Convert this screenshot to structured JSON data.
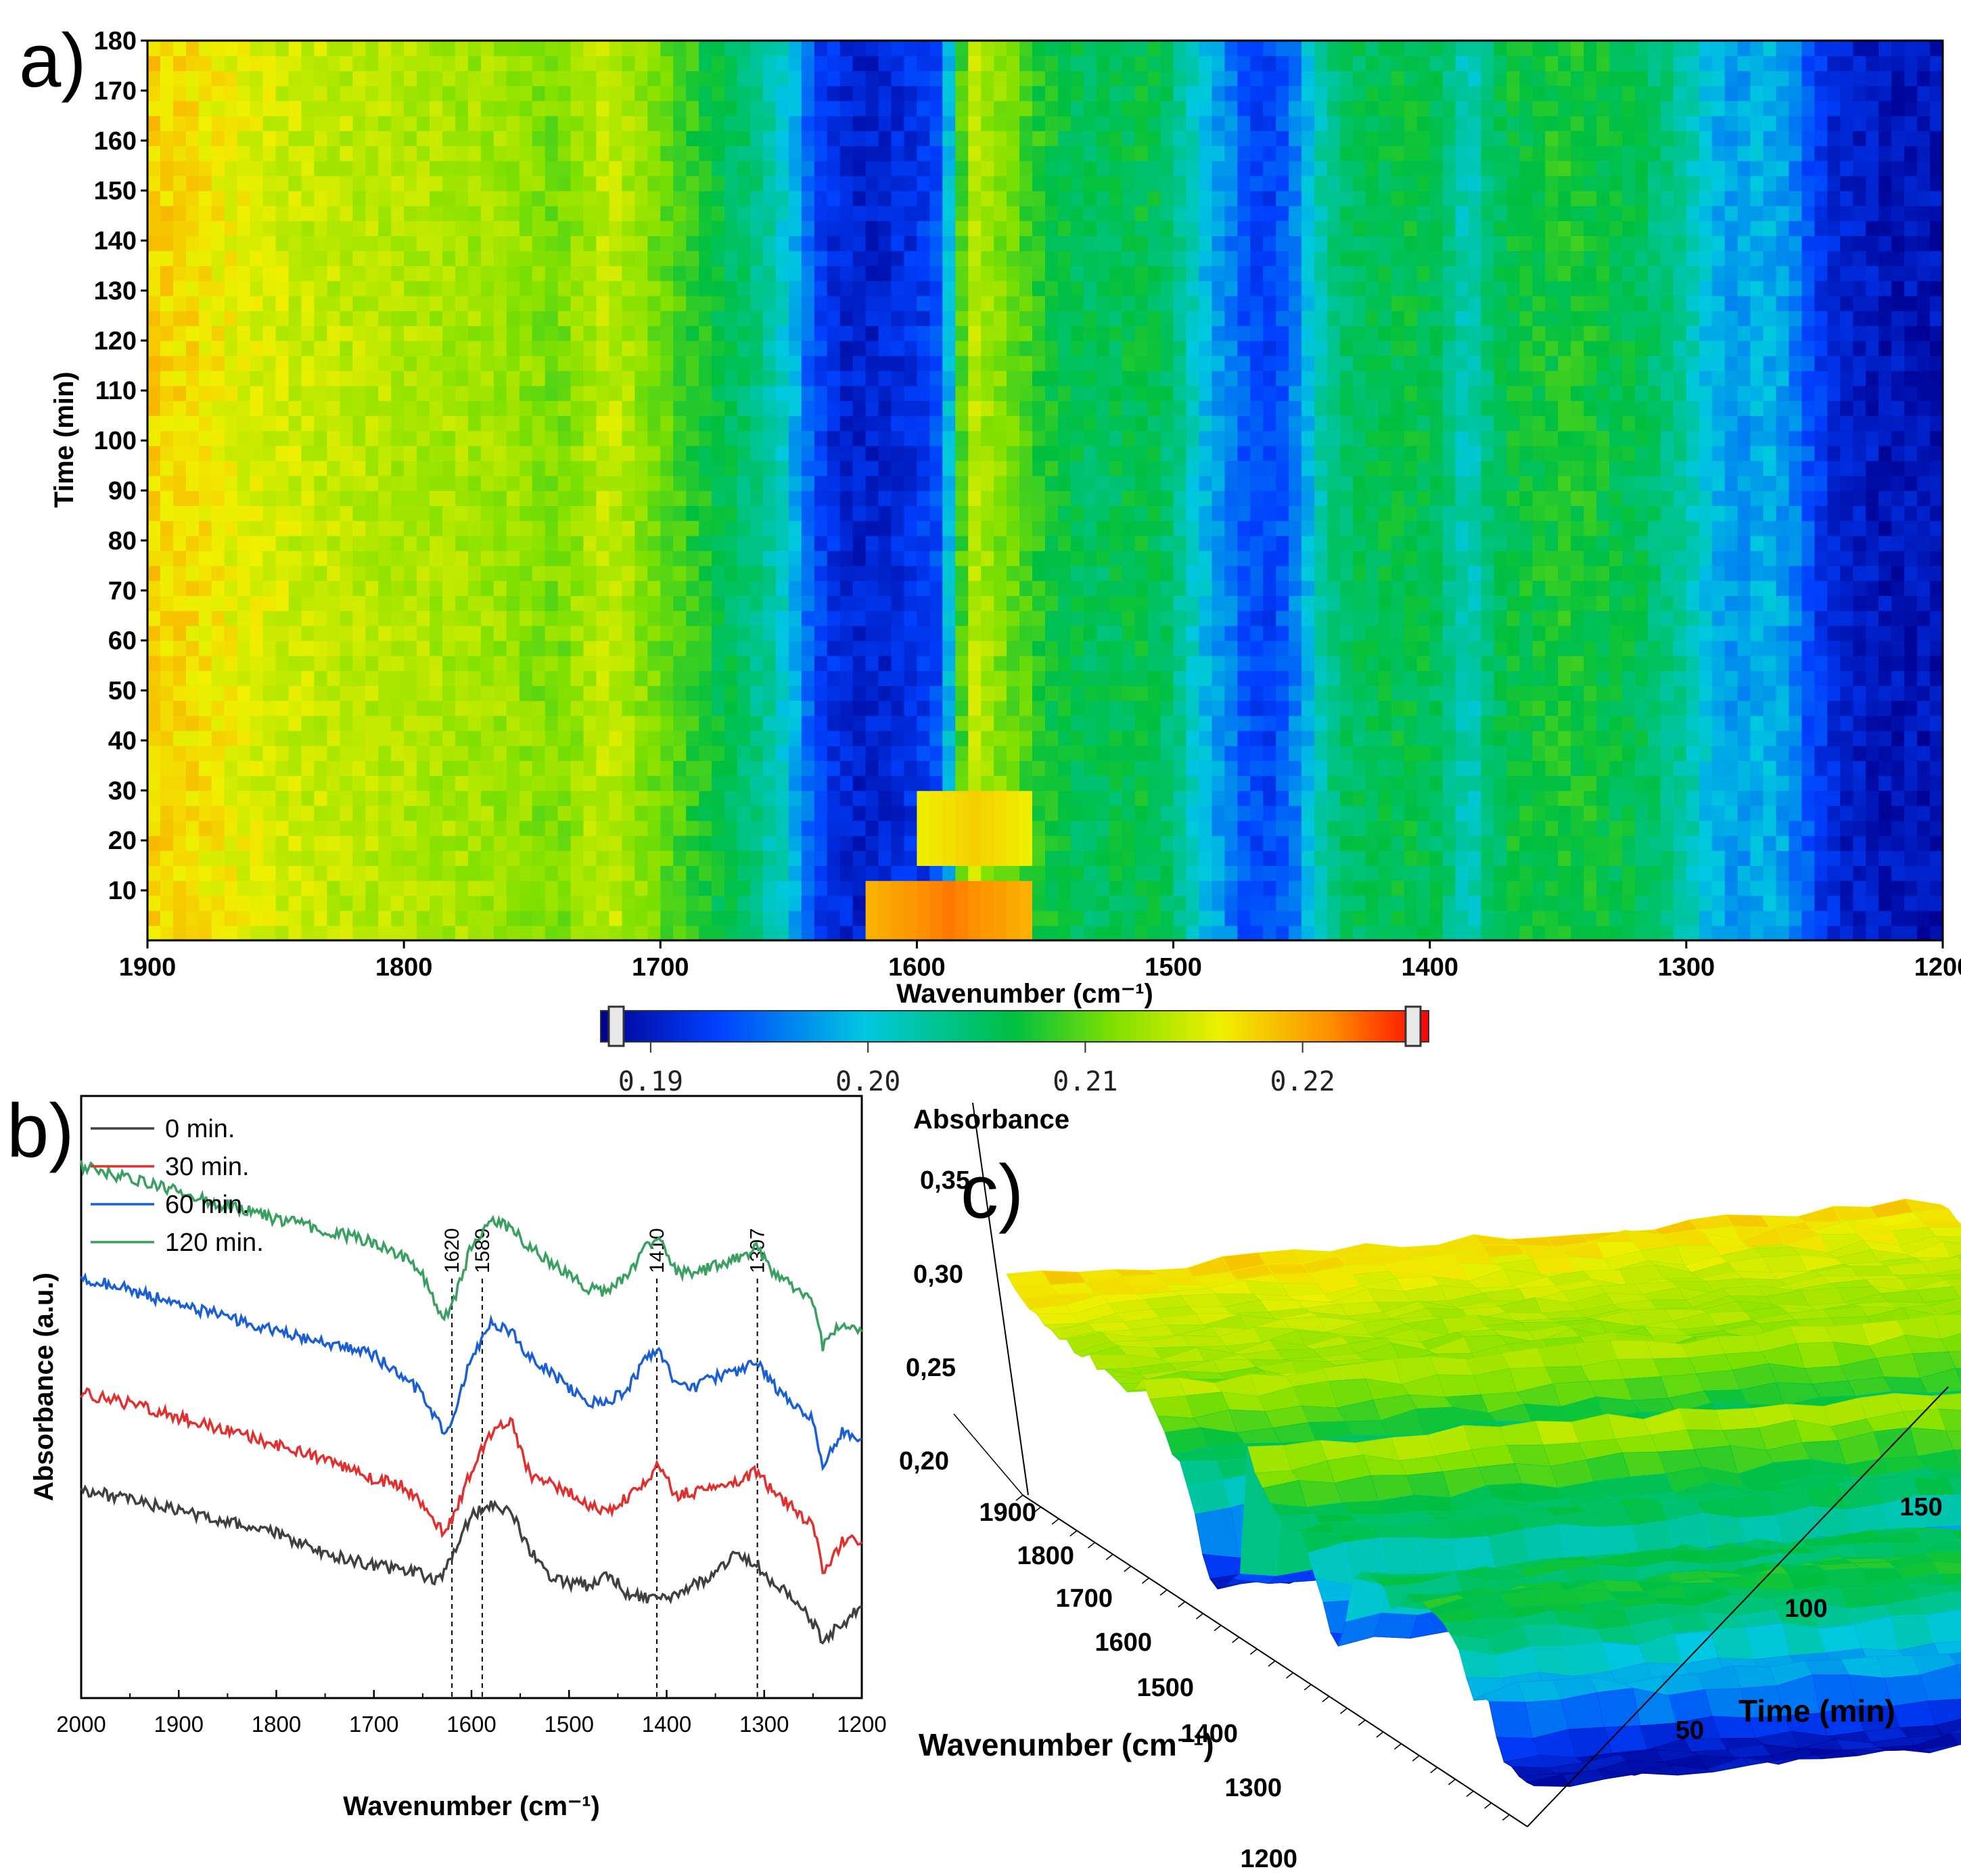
{
  "panels": {
    "a": {
      "label": "a)"
    },
    "b": {
      "label": "b)"
    },
    "c": {
      "label": "c)"
    }
  },
  "chart_data": [
    {
      "id": "a",
      "type": "heatmap",
      "title": "",
      "xlabel": "Wavenumber (cm⁻¹)",
      "ylabel": "Time (min)",
      "xlim": [
        1900,
        1200
      ],
      "ylim": [
        0,
        180
      ],
      "x_ticks": [
        1900,
        1800,
        1700,
        1600,
        1500,
        1400,
        1300,
        1200
      ],
      "y_ticks": [
        10,
        20,
        30,
        40,
        50,
        60,
        70,
        80,
        90,
        100,
        110,
        120,
        130,
        140,
        150,
        160,
        170,
        180
      ],
      "profile_wavenumbers": [
        1900,
        1880,
        1860,
        1840,
        1820,
        1800,
        1780,
        1760,
        1740,
        1720,
        1700,
        1680,
        1660,
        1650,
        1640,
        1630,
        1620,
        1610,
        1600,
        1590,
        1580,
        1570,
        1560,
        1550,
        1540,
        1530,
        1520,
        1510,
        1500,
        1490,
        1480,
        1470,
        1460,
        1450,
        1440,
        1430,
        1420,
        1410,
        1400,
        1390,
        1385,
        1380,
        1370,
        1360,
        1350,
        1340,
        1330,
        1320,
        1310,
        1300,
        1290,
        1280,
        1270,
        1260,
        1250,
        1240,
        1230,
        1220,
        1210,
        1200
      ],
      "absorbance_profile": [
        0.218,
        0.217,
        0.2155,
        0.2145,
        0.214,
        0.2135,
        0.213,
        0.2125,
        0.211,
        0.2145,
        0.2105,
        0.207,
        0.2035,
        0.2,
        0.1935,
        0.191,
        0.1905,
        0.191,
        0.192,
        0.194,
        0.2145,
        0.212,
        0.21,
        0.2075,
        0.206,
        0.2055,
        0.206,
        0.2065,
        0.2045,
        0.2,
        0.197,
        0.1935,
        0.193,
        0.1975,
        0.2035,
        0.2055,
        0.206,
        0.2065,
        0.206,
        0.2035,
        0.2005,
        0.2035,
        0.2065,
        0.207,
        0.2075,
        0.2075,
        0.2065,
        0.206,
        0.2045,
        0.2025,
        0.199,
        0.1975,
        0.199,
        0.1975,
        0.193,
        0.1905,
        0.19,
        0.1895,
        0.1895,
        0.1895
      ],
      "early_features": [
        {
          "note": "elevated absorbance near 1600 cm-1 at early times",
          "x_range": [
            1620,
            1555
          ],
          "t_range": [
            0,
            12
          ],
          "value": 0.222
        },
        {
          "note": "elevated absorbance near 1580 cm-1",
          "x_range": [
            1600,
            1555
          ],
          "t_range": [
            15,
            30
          ],
          "value": 0.218
        }
      ]
    },
    {
      "id": "colorbar",
      "type": "colorbar",
      "range": [
        0.1877,
        0.2258
      ],
      "ticks": [
        "0.19",
        "0.20",
        "0.21",
        "0.22"
      ],
      "tick_values": [
        0.19,
        0.2,
        0.21,
        0.22
      ],
      "colors": [
        "#000090",
        "#0040ff",
        "#00c8e0",
        "#00c040",
        "#80e000",
        "#f0f000",
        "#ff9000",
        "#ff0000"
      ]
    },
    {
      "id": "b",
      "type": "line",
      "xlabel": "Wavenumber (cm⁻¹)",
      "ylabel": "Absorbance (a.u.)",
      "xlim": [
        2000,
        1200
      ],
      "x_ticks": [
        2000,
        1900,
        1800,
        1700,
        1600,
        1500,
        1400,
        1300,
        1200
      ],
      "peak_markers": [
        {
          "x": 1620,
          "label": "1620"
        },
        {
          "x": 1589,
          "label": "1589"
        },
        {
          "x": 1410,
          "label": "1410"
        },
        {
          "x": 1307,
          "label": "1307"
        }
      ],
      "x": [
        2000,
        1950,
        1900,
        1850,
        1800,
        1750,
        1700,
        1670,
        1650,
        1630,
        1620,
        1600,
        1580,
        1560,
        1540,
        1520,
        1500,
        1480,
        1460,
        1440,
        1420,
        1410,
        1390,
        1370,
        1350,
        1330,
        1307,
        1290,
        1270,
        1250,
        1240,
        1220,
        1200
      ],
      "series": [
        {
          "name": "0 min.",
          "color": "#404040",
          "offset": 0,
          "values": [
            10.6,
            9.8,
            9.0,
            8.2,
            7.3,
            5.8,
            4.9,
            4.6,
            4.2,
            3.8,
            5.8,
            8.6,
            9.6,
            9.0,
            6.0,
            4.2,
            3.6,
            3.4,
            4.3,
            2.8,
            2.5,
            2.2,
            2.6,
            3.6,
            4.2,
            6.0,
            4.8,
            3.6,
            2.4,
            0.6,
            -0.6,
            0.6,
            1.8
          ]
        },
        {
          "name": "30 min.",
          "color": "#e03030",
          "offset": 8.4,
          "values": [
            9.4,
            8.6,
            7.6,
            6.6,
            5.5,
            4.4,
            3.0,
            2.4,
            1.0,
            -1.0,
            -0.2,
            3.6,
            6.4,
            7.4,
            3.2,
            2.6,
            2.0,
            1.0,
            0.4,
            1.6,
            3.0,
            4.0,
            1.8,
            2.0,
            2.2,
            2.6,
            3.6,
            1.8,
            0.8,
            -0.6,
            -3.8,
            -1.8,
            -1.6
          ]
        },
        {
          "name": "60 min.",
          "color": "#1a5fd6",
          "offset": 16.6,
          "values": [
            9.8,
            8.9,
            7.8,
            6.9,
            5.9,
            5.0,
            4.0,
            2.4,
            1.2,
            -1.6,
            -0.8,
            3.8,
            6.6,
            5.8,
            3.8,
            2.8,
            1.6,
            0.6,
            0.4,
            1.6,
            3.8,
            4.4,
            2.0,
            1.6,
            2.4,
            2.8,
            3.6,
            1.8,
            0.4,
            -0.8,
            -4.0,
            -1.6,
            -2.2
          ]
        },
        {
          "name": "120 min.",
          "color": "#3aa060",
          "offset": 25.0,
          "values": [
            9.8,
            8.8,
            7.8,
            6.8,
            5.8,
            5.0,
            4.0,
            3.0,
            1.6,
            -1.4,
            -0.8,
            3.8,
            5.8,
            5.2,
            3.6,
            2.6,
            1.6,
            0.6,
            0.4,
            1.6,
            3.8,
            4.4,
            2.0,
            1.6,
            2.4,
            2.8,
            3.6,
            1.8,
            0.8,
            -0.4,
            -3.8,
            -2.0,
            -2.6
          ]
        }
      ]
    },
    {
      "id": "c",
      "type": "surface",
      "zlabel": "Absorbance",
      "xlabel": "Wavenumber (cm⁻¹)",
      "ylabel": "Time (min)",
      "z_ticks": [
        "0,20",
        "0,25",
        "0,30",
        "0,35"
      ],
      "x_ticks": [
        "1900",
        "1800",
        "1700",
        "1600",
        "1500",
        "1400",
        "1300",
        "1200"
      ],
      "y_ticks": [
        "50",
        "100",
        "150"
      ]
    }
  ]
}
